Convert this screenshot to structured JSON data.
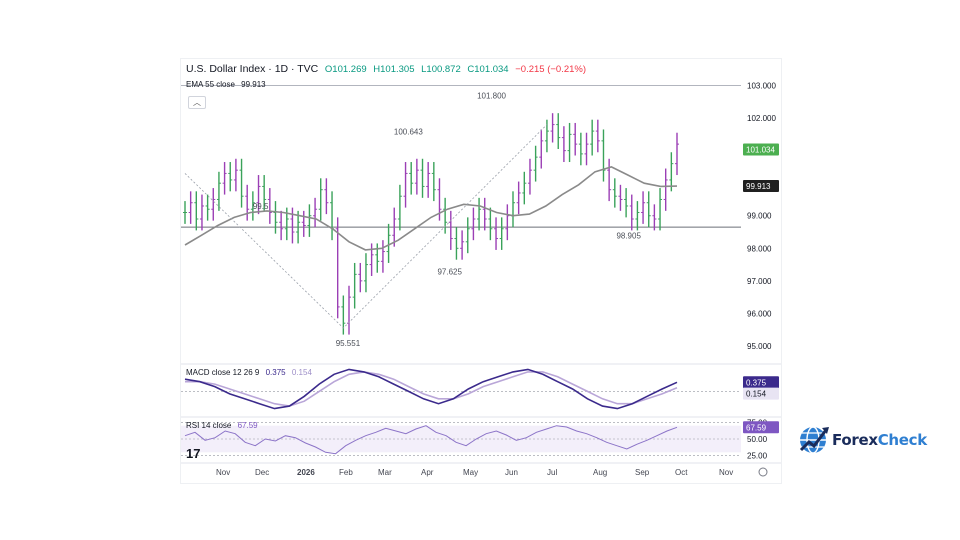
{
  "header": {
    "symbol": "U.S. Dollar Index · 1D · TVC",
    "open": "O101.269",
    "high": "H101.305",
    "low": "L100.872",
    "close": "C101.034",
    "change": "−0.215 (−0.21%)",
    "ema_label": "EMA 55 close",
    "ema_value": "99.913"
  },
  "macd_header": {
    "label": "MACD close 12 26 9",
    "v1": "0.375",
    "v2": "0.154"
  },
  "rsi_header": {
    "label": "RSI 14 close",
    "v1": "67.59"
  },
  "price_labels": {
    "last": "101.034",
    "ema": "99.913",
    "macd": "0.375",
    "signal": "0.154",
    "rsi": "67.59"
  },
  "brand": {
    "part1": "Forex",
    "part2": "Check"
  },
  "colors": {
    "up": "#089981",
    "down": "#f23645",
    "bar_green": "#3aa25a",
    "bar_purple": "#9b3fb5",
    "ema": "#8a8a8a",
    "macd": "#3b2a8c",
    "signal": "#b9a6d8",
    "rsi": "#8c74c8"
  },
  "chart_data": [
    {
      "type": "line",
      "title": "U.S. Dollar Index · 1D · TVC",
      "x_ticks": [
        "Nov",
        "Dec",
        "2026",
        "Feb",
        "Mar",
        "Apr",
        "May",
        "Jun",
        "Jul",
        "Aug",
        "Sep",
        "Oct",
        "Nov"
      ],
      "y_ticks": [
        "103.000",
        "102.000",
        "101.000",
        "100.000",
        "99.000",
        "98.000",
        "97.000",
        "96.000",
        "95.000"
      ],
      "ylim": [
        94.6,
        103.2
      ],
      "series": [
        {
          "name": "U.S. Dollar Index",
          "values": [
            99.1,
            99.4,
            98.9,
            99.3,
            99.2,
            99.5,
            100.0,
            100.3,
            100.1,
            100.4,
            99.6,
            99.2,
            99.4,
            99.9,
            99.5,
            99.1,
            98.8,
            98.6,
            98.9,
            98.5,
            98.8,
            98.7,
            99.0,
            99.2,
            99.8,
            99.4,
            98.6,
            96.2,
            95.7,
            96.5,
            97.2,
            97.0,
            97.5,
            97.8,
            97.6,
            97.9,
            98.4,
            98.9,
            99.6,
            100.3,
            100.0,
            100.4,
            99.9,
            100.3,
            99.8,
            99.2,
            98.8,
            98.3,
            98.0,
            98.2,
            98.6,
            98.9,
            99.2,
            98.9,
            98.6,
            98.3,
            98.6,
            99.0,
            99.4,
            99.7,
            100.0,
            100.4,
            100.8,
            101.3,
            101.6,
            101.8,
            101.4,
            101.0,
            101.5,
            101.2,
            100.9,
            101.2,
            101.6,
            101.3,
            100.4,
            99.8,
            99.6,
            99.5,
            99.3,
            98.9,
            99.1,
            99.4,
            99.0,
            98.9,
            99.5,
            100.1,
            100.6,
            101.2
          ],
          "dates": []
        },
        {
          "name": "EMA 55 close",
          "values": [
            98.1,
            98.4,
            98.7,
            98.95,
            99.1,
            99.15,
            99.1,
            99.0,
            98.9,
            98.6,
            98.2,
            97.95,
            98.0,
            98.25,
            98.6,
            98.95,
            99.2,
            99.35,
            99.3,
            99.1,
            99.0,
            99.05,
            99.3,
            99.65,
            99.95,
            100.35,
            100.5,
            100.25,
            100.0,
            99.9,
            99.91
          ]
        }
      ],
      "annotations": [
        "100.643",
        "101.800",
        "95.551",
        "97.625",
        "98.905",
        "99.5"
      ],
      "horizontal_lines": [
        103.0,
        98.65
      ]
    },
    {
      "type": "line",
      "title": "MACD close 12 26 9",
      "series": [
        {
          "name": "MACD",
          "values": [
            0.5,
            0.4,
            0.2,
            -0.1,
            -0.3,
            -0.5,
            -0.7,
            -0.6,
            -0.2,
            0.3,
            0.7,
            0.9,
            0.8,
            0.6,
            0.3,
            0.0,
            -0.3,
            -0.5,
            -0.3,
            0.1,
            0.4,
            0.6,
            0.8,
            0.9,
            0.7,
            0.4,
            0.1,
            -0.3,
            -0.6,
            -0.7,
            -0.5,
            -0.2,
            0.1,
            0.375
          ]
        },
        {
          "name": "Signal",
          "values": [
            0.4,
            0.4,
            0.3,
            0.1,
            -0.1,
            -0.3,
            -0.5,
            -0.6,
            -0.4,
            0.0,
            0.4,
            0.7,
            0.8,
            0.7,
            0.5,
            0.2,
            -0.1,
            -0.3,
            -0.3,
            -0.1,
            0.2,
            0.4,
            0.6,
            0.8,
            0.8,
            0.6,
            0.3,
            0.0,
            -0.3,
            -0.5,
            -0.5,
            -0.3,
            -0.1,
            0.154
          ]
        }
      ]
    },
    {
      "type": "line",
      "title": "RSI 14 close",
      "y_ticks": [
        "75.00",
        "50.00",
        "25.00"
      ],
      "ylim": [
        20,
        80
      ],
      "series": [
        {
          "name": "RSI",
          "values": [
            55,
            60,
            48,
            52,
            62,
            58,
            45,
            40,
            50,
            47,
            55,
            52,
            44,
            38,
            30,
            28,
            40,
            48,
            55,
            60,
            66,
            62,
            58,
            65,
            70,
            60,
            55,
            45,
            40,
            50,
            58,
            62,
            56,
            48,
            52,
            60,
            65,
            70,
            68,
            62,
            58,
            52,
            45,
            40,
            35,
            42,
            48,
            55,
            62,
            67.59
          ]
        }
      ]
    }
  ]
}
